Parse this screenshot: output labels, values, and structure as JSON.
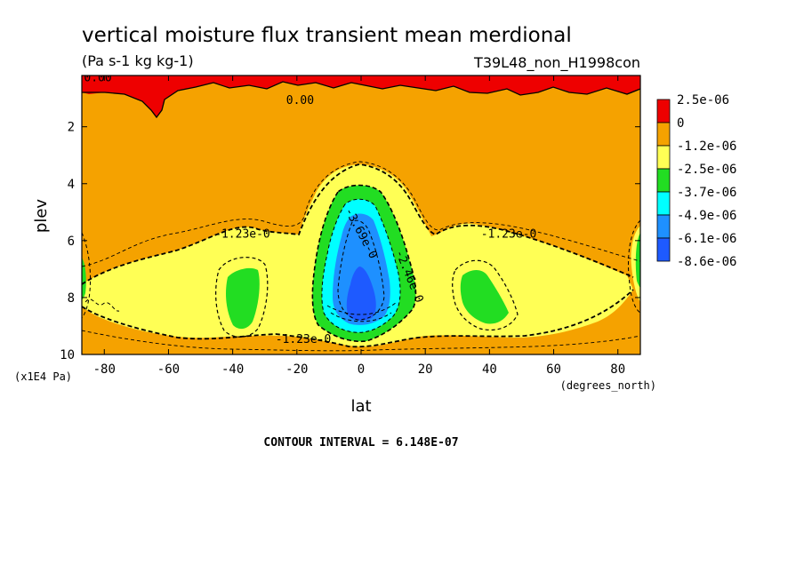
{
  "chart_data": {
    "type": "heatmap",
    "title": "vertical moisture flux transient mean merdional",
    "units_label": "(Pa s-1 kg kg-1)",
    "run_label": "T39L48_non_H1998con",
    "xlabel": "lat",
    "ylabel": "plev",
    "x_units": "(degrees_north)",
    "y_units": "(x1E4 Pa)",
    "xlim": [
      -87,
      87
    ],
    "ylim": [
      10,
      0.2
    ],
    "x_ticks": [
      -80,
      -60,
      -40,
      -20,
      0,
      20,
      40,
      60,
      80
    ],
    "x_tick_labels": [
      "-80",
      "-60",
      "-40",
      "-20",
      "0",
      "20",
      "40",
      "60",
      "80"
    ],
    "y_ticks": [
      2,
      4,
      6,
      8,
      10
    ],
    "y_tick_labels": [
      "2",
      "4",
      "6",
      "8",
      "10"
    ],
    "contour_interval_text": "CONTOUR INTERVAL = 6.148E-07",
    "contour_labels": [
      {
        "text": "0.00",
        "lat": -82,
        "plev": 0.4
      },
      {
        "text": "0.00",
        "lat": -19,
        "plev": 1.2
      },
      {
        "text": "-1.23e-0",
        "lat": -37,
        "plev": 5.9
      },
      {
        "text": "-1.23e-0",
        "lat": 46,
        "plev": 5.9
      },
      {
        "text": "-1.23e-0",
        "lat": -18,
        "plev": 9.6
      },
      {
        "text": "-3.69e-0",
        "lat": -1,
        "plev": 5.8
      },
      {
        "text": "-2.46e-0",
        "lat": 14,
        "plev": 7.3
      }
    ],
    "legend": {
      "entries": [
        "2.5e-06",
        "0",
        "-1.2e-06",
        "-2.5e-06",
        "-3.7e-06",
        "-4.9e-06",
        "-6.1e-06",
        "-8.6e-06"
      ],
      "colors": [
        "#ee0000",
        "#f5a200",
        "#ffff55",
        "#22dd22",
        "#00ffff",
        "#1e90ff",
        "#1e5aff"
      ],
      "placement": "right"
    },
    "regions": [
      {
        "color": "#f5a200",
        "level": "0 to -1.2e-06",
        "description": "background"
      },
      {
        "color": "#ee0000",
        "level": "> 0",
        "description": "upper-level positive patches"
      },
      {
        "color": "#ffff55",
        "level": "-1.2e-06 to -2.5e-06",
        "description": "broad band around the three cores"
      },
      {
        "color": "#22dd22",
        "level": "-2.5e-06 to -3.7e-06",
        "description": "cores near 35S, 40N and equator"
      },
      {
        "color": "#00ffff",
        "level": "-3.7e-06 to -4.9e-06",
        "description": "equatorial core"
      },
      {
        "color": "#1e90ff",
        "level": "-4.9e-06 to -6.1e-06",
        "description": "equatorial core"
      },
      {
        "color": "#1e5aff",
        "level": "< -6.1e-06",
        "description": "equatorial core at 8-9 x1E4 Pa"
      }
    ]
  }
}
